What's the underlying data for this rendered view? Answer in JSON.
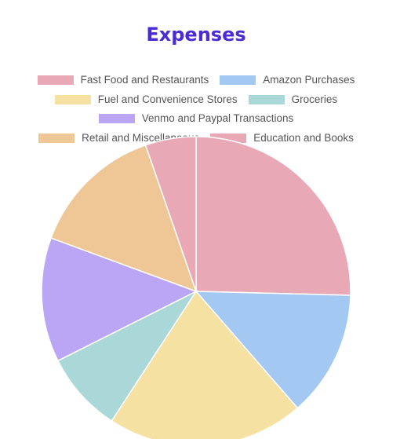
{
  "chart_data": {
    "type": "pie",
    "title": "Expenses",
    "legend_position": "top",
    "categories": [
      "Fast Food and Restaurants",
      "Amazon Purchases",
      "Fuel and Convenience Stores",
      "Groceries",
      "Venmo and Paypal Transactions",
      "Retail and Miscellaneous",
      "Education and Books"
    ],
    "values": [
      25.4,
      13.2,
      20.6,
      8.4,
      13.0,
      14.1,
      5.3
    ],
    "colors": [
      "#e8a8b5",
      "#a3c8f2",
      "#f5e1a2",
      "#aad8d9",
      "#bba6f6",
      "#efc797",
      "#e8a8b5"
    ],
    "start_angle": "12 o'clock",
    "direction": "clockwise"
  }
}
